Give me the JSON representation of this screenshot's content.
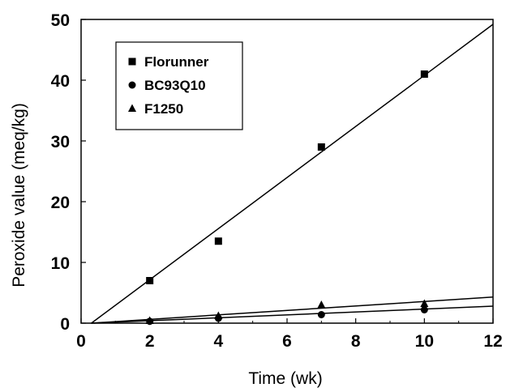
{
  "chart_data": {
    "type": "scatter",
    "title": "",
    "xlabel": "Time (wk)",
    "ylabel": "Peroxide value (meq/kg)",
    "xlim": [
      0,
      12
    ],
    "ylim": [
      0,
      50
    ],
    "x_ticks": [
      0,
      2,
      4,
      6,
      8,
      10,
      12
    ],
    "y_ticks": [
      0,
      10,
      20,
      30,
      40,
      50
    ],
    "grid": false,
    "legend_position": "top-left",
    "series": [
      {
        "name": "Florunner",
        "marker": "square",
        "color": "#000000",
        "points": [
          [
            2,
            7.0
          ],
          [
            4,
            13.5
          ],
          [
            7,
            29.0
          ],
          [
            10,
            41.0
          ]
        ],
        "fit_line": [
          [
            0.3,
            0
          ],
          [
            12,
            49.2
          ]
        ]
      },
      {
        "name": "BC93Q10",
        "marker": "circle",
        "color": "#000000",
        "points": [
          [
            2,
            0.3
          ],
          [
            4,
            0.8
          ],
          [
            7,
            1.4
          ],
          [
            10,
            2.2
          ]
        ],
        "fit_line": [
          [
            0.3,
            0
          ],
          [
            12,
            2.8
          ]
        ]
      },
      {
        "name": "F1250",
        "marker": "triangle",
        "color": "#000000",
        "points": [
          [
            2,
            0.4
          ],
          [
            4,
            1.2
          ],
          [
            7,
            3.0
          ],
          [
            10,
            3.2
          ]
        ],
        "fit_line": [
          [
            0.3,
            0
          ],
          [
            12,
            4.3
          ]
        ]
      }
    ]
  }
}
